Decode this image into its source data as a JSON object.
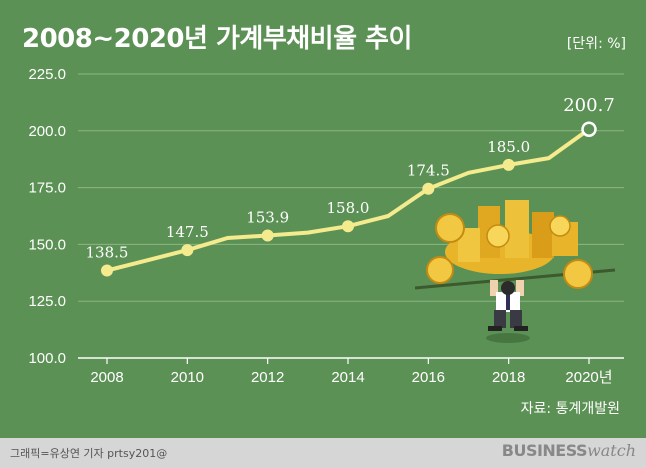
{
  "header": {
    "title": "2008~2020년 가계부채비율 추이",
    "unit": "[단위: %]"
  },
  "source": "자료: 통계개발원",
  "footer": {
    "credit": "그래픽=유상연 기자 prtsy201@",
    "brand_bold": "BUSINESS",
    "brand_light": "watch"
  },
  "colors": {
    "background": "#5c9155",
    "line": "#f4ea8e",
    "grid": "#8ab682",
    "footer": "#d6d6d6"
  },
  "chart_data": {
    "type": "line",
    "x": [
      2008,
      2009,
      2010,
      2011,
      2012,
      2013,
      2014,
      2015,
      2016,
      2017,
      2018,
      2019,
      2020
    ],
    "values": [
      138.5,
      143,
      147.5,
      152.8,
      153.9,
      155.2,
      158.0,
      162.5,
      174.5,
      181.5,
      185.0,
      188.0,
      200.7
    ],
    "labeled_points": [
      {
        "x": 2008,
        "label": "138.5"
      },
      {
        "x": 2010,
        "label": "147.5"
      },
      {
        "x": 2012,
        "label": "153.9"
      },
      {
        "x": 2014,
        "label": "158.0"
      },
      {
        "x": 2016,
        "label": "174.5"
      },
      {
        "x": 2018,
        "label": "185.0"
      },
      {
        "x": 2020,
        "label": "200.7"
      }
    ],
    "x_ticks": [
      {
        "x": 2008,
        "label": "2008"
      },
      {
        "x": 2010,
        "label": "2010"
      },
      {
        "x": 2012,
        "label": "2012"
      },
      {
        "x": 2014,
        "label": "2014"
      },
      {
        "x": 2016,
        "label": "2016"
      },
      {
        "x": 2018,
        "label": "2018"
      },
      {
        "x": 2020,
        "label": "2020년"
      }
    ],
    "y_ticks": [
      "100.0",
      "125.0",
      "150.0",
      "175.0",
      "200.0",
      "225.0"
    ],
    "ylim": [
      100,
      225
    ],
    "xlim": [
      2008,
      2020
    ],
    "grid": "horizontal",
    "title": "2008~2020년 가계부채비율 추이",
    "xlabel": "",
    "ylabel": ""
  },
  "illustration": "businessman-lifting-gold-coins"
}
